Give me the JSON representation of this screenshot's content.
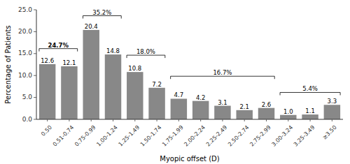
{
  "chart_data": {
    "type": "bar",
    "categories": [
      "0.50",
      "0.51-0.74",
      "0.75-0.99",
      "1.00-1.24",
      "1.25-1.49",
      "1.50-1.74",
      "1.75-1.99",
      "2.00-2.24",
      "2.25-2.49",
      "2.50-2.74",
      "2.75-2.99",
      "3.00-3.24",
      "3.25-3.49",
      "≥3.50"
    ],
    "values": [
      12.6,
      12.1,
      20.4,
      14.8,
      10.8,
      7.2,
      4.7,
      4.2,
      3.1,
      2.1,
      2.6,
      1.0,
      1.1,
      3.3
    ],
    "value_labels": [
      "12.6",
      "12.1",
      "20.4",
      "14.8",
      "10.8",
      "7.2",
      "4.7",
      "4.2",
      "3.1",
      "2.1",
      "2.6",
      "1.0",
      "1.1",
      "3.3"
    ],
    "data_labels": true,
    "color": "#888888",
    "x_label": "Myopic offset (D)",
    "y_label": "Percentage of Patients",
    "ylim": [
      0,
      25.0
    ],
    "yticks": [
      {
        "value": 0,
        "label": "0.0"
      },
      {
        "value": 5,
        "label": "5.0"
      },
      {
        "value": 10,
        "label": "10.0"
      },
      {
        "value": 15,
        "label": "15.0"
      },
      {
        "value": 20,
        "label": "20.0"
      },
      {
        "value": 25,
        "label": "25.0"
      }
    ],
    "grid": false,
    "annotations": [
      {
        "from": "0.50",
        "to": "0.51-0.74",
        "y": 15.5,
        "label": "24.7%",
        "bold": true
      },
      {
        "from": "0.75-0.99",
        "to": "1.00-1.24",
        "y": 23.0,
        "label": "35.2%",
        "bold": false
      },
      {
        "from": "1.25-1.49",
        "to": "1.50-1.74",
        "y": 14.0,
        "label": "18.0%",
        "bold": false
      },
      {
        "from": "1.75-1.99",
        "to": "2.75-2.99",
        "y": 9.2,
        "label": "16.7%",
        "bold": false
      },
      {
        "from": "3.00-3.24",
        "to": "≥3.50",
        "y": 5.5,
        "label": "5.4%",
        "bold": false
      }
    ]
  }
}
